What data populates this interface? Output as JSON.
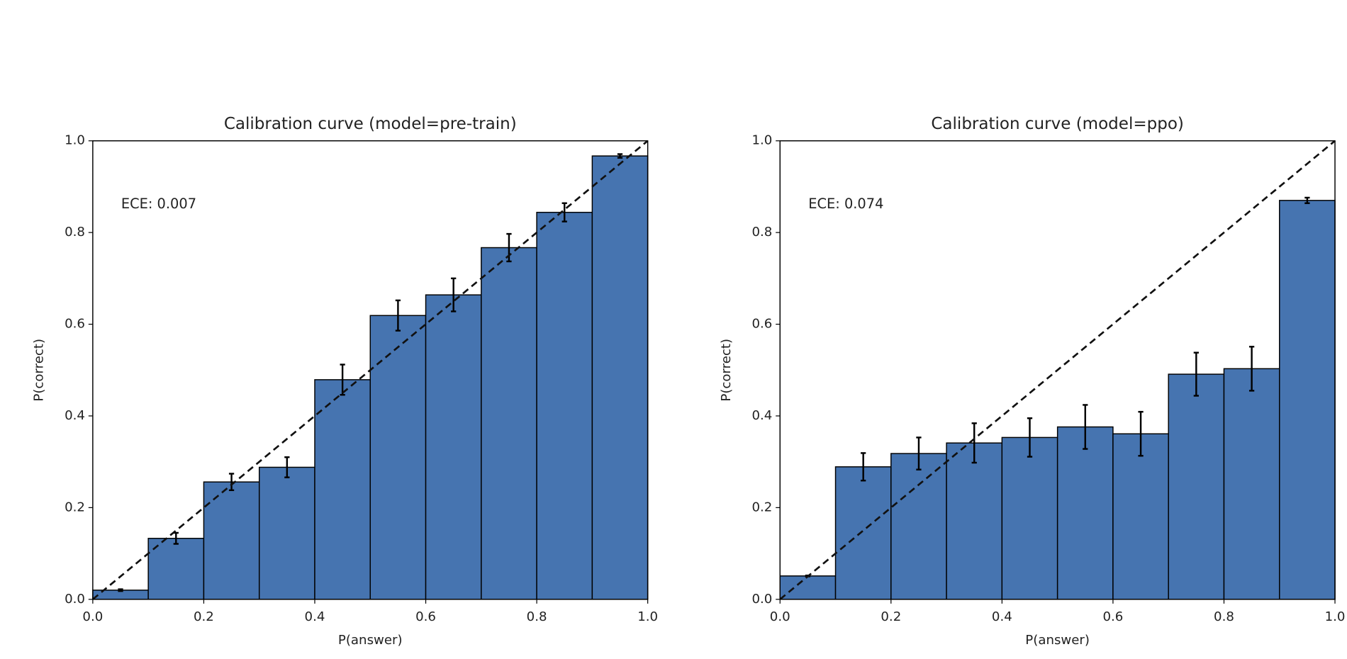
{
  "chart_data": [
    {
      "type": "histogram",
      "title": "Calibration curve (model=pre-train)",
      "x_label": "P(answer)",
      "y_label": "P(correct)",
      "annotation": "ECE: 0.007",
      "bins": [
        0,
        0.1,
        0.2,
        0.3,
        0.4,
        0.5,
        0.6,
        0.7,
        0.8,
        0.9,
        1
      ],
      "values": [
        0.02,
        0.133,
        0.256,
        0.288,
        0.479,
        0.619,
        0.664,
        0.767,
        0.844,
        0.967
      ],
      "errors": [
        0.002,
        0.012,
        0.018,
        0.022,
        0.033,
        0.033,
        0.036,
        0.03,
        0.02,
        0.004
      ],
      "color": "#4674b0",
      "xlim": [
        0,
        1
      ],
      "ylim": [
        0,
        1
      ],
      "xticks": [
        {
          "value": 0,
          "label": "0.0"
        },
        0.2,
        0.4,
        0.6,
        0.8,
        {
          "value": 1,
          "label": "1.0"
        }
      ],
      "yticks": [
        {
          "value": 0,
          "label": "0.0"
        },
        0.2,
        0.4,
        0.6,
        0.8,
        {
          "value": 1,
          "label": "1.0"
        }
      ]
    },
    {
      "type": "histogram",
      "title": "Calibration curve (model=ppo)",
      "x_label": "P(answer)",
      "y_label": "P(correct)",
      "annotation": "ECE: 0.074",
      "bins": [
        0,
        0.1,
        0.2,
        0.3,
        0.4,
        0.5,
        0.6,
        0.7,
        0.8,
        0.9,
        1
      ],
      "values": [
        0.051,
        0.289,
        0.318,
        0.341,
        0.353,
        0.376,
        0.361,
        0.491,
        0.503,
        0.87
      ],
      "errors": [
        0.001,
        0.03,
        0.035,
        0.043,
        0.042,
        0.048,
        0.048,
        0.047,
        0.048,
        0.006
      ],
      "color": "#4674b0",
      "xlim": [
        0,
        1
      ],
      "ylim": [
        0,
        1
      ],
      "xticks": [
        {
          "value": 0,
          "label": "0.0"
        },
        0.2,
        0.4,
        0.6,
        0.8,
        {
          "value": 1,
          "label": "1.0"
        }
      ],
      "yticks": [
        {
          "value": 0,
          "label": "0.0"
        },
        0.2,
        0.4,
        0.6,
        0.8,
        {
          "value": 1,
          "label": "1.0"
        }
      ]
    }
  ]
}
